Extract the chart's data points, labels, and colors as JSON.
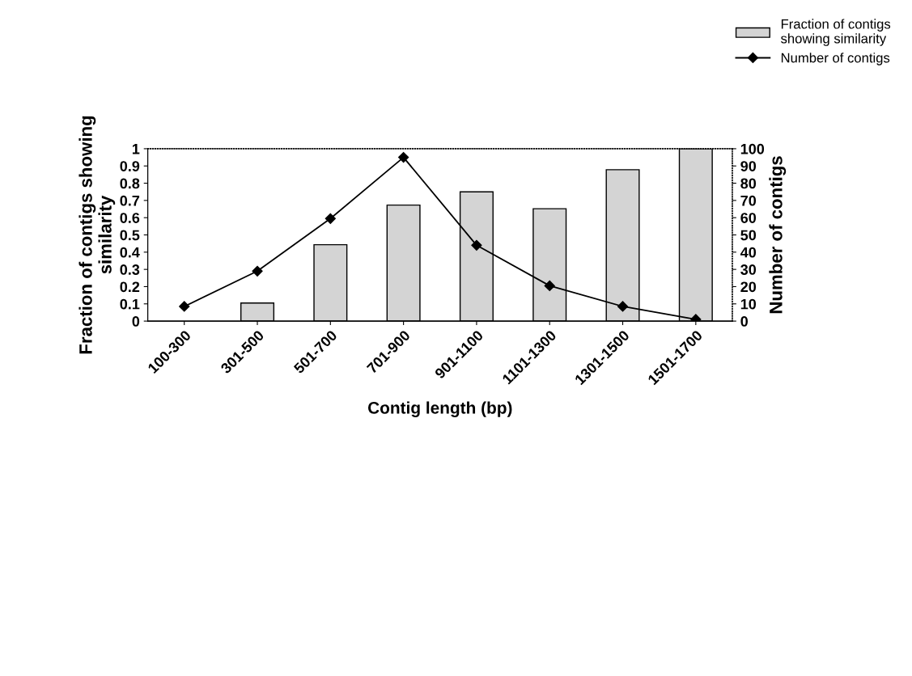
{
  "chart_data": {
    "type": "bar",
    "xlabel": "Contig length (bp)",
    "ylabel": "Fraction of contigs showing\nsimilarity",
    "y2label": "Number of contigs",
    "categories": [
      "100-300",
      "301-500",
      "501-700",
      "701-900",
      "901-1100",
      "1101-1300",
      "1301-1500",
      "1501-1700"
    ],
    "series": [
      {
        "name": "Fraction of contigs\nshowing similarity",
        "color": "#d4d4d4",
        "values": [
          null,
          0.105,
          0.443,
          0.673,
          0.75,
          0.652,
          0.878,
          1.0
        ]
      },
      {
        "name": "Number of contigs",
        "type": "line",
        "axis": "y2",
        "color": "#000000",
        "marker": "diamond",
        "values": [
          8.5,
          29,
          59.5,
          95,
          44,
          20.5,
          8.5,
          1
        ]
      }
    ],
    "ylim": [
      0,
      1
    ],
    "yticks": [
      0,
      0.1,
      0.2,
      0.3,
      0.4,
      0.5,
      0.6,
      0.7,
      0.8,
      0.9,
      1
    ],
    "y2lim": [
      0,
      100
    ],
    "y2ticks": [
      0,
      10,
      20,
      30,
      40,
      50,
      60,
      70,
      80,
      90,
      100
    ],
    "legend": "top right"
  }
}
